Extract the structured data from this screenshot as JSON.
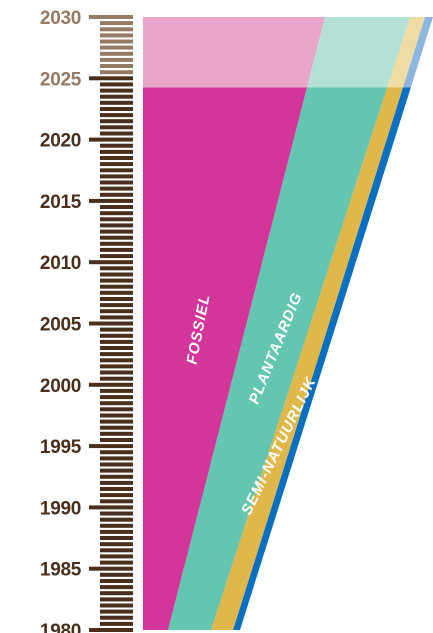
{
  "timeline": {
    "future_from_year": 2025,
    "colors": {
      "past_tick": "#4a2f1c",
      "future_tick": "#957a66",
      "past_text": "#4a2f1c",
      "future_text": "#957a66"
    }
  },
  "chart_data": {
    "type": "area",
    "orientation": "vertical-time-axis",
    "y_axis": {
      "min": 1980,
      "max": 2030,
      "ticks": [
        "1980",
        "1985",
        "1990",
        "1995",
        "2000",
        "2005",
        "2010",
        "2015",
        "2020",
        "2025",
        "2030"
      ]
    },
    "bands": [
      {
        "label": "FOSSIEL",
        "color": "#d3359a",
        "future_color": "#e8a4c9"
      },
      {
        "label": "PLANTAARDIG",
        "color": "#64c5b0",
        "future_color": "#b3e1d5"
      },
      {
        "label": "SEMI-NATUURLIJK",
        "color": "#e0b74a",
        "future_color": "#f1dba4"
      },
      {
        "label": "",
        "color": "#0a6fbf",
        "future_color": "#8cb6e0"
      }
    ]
  }
}
